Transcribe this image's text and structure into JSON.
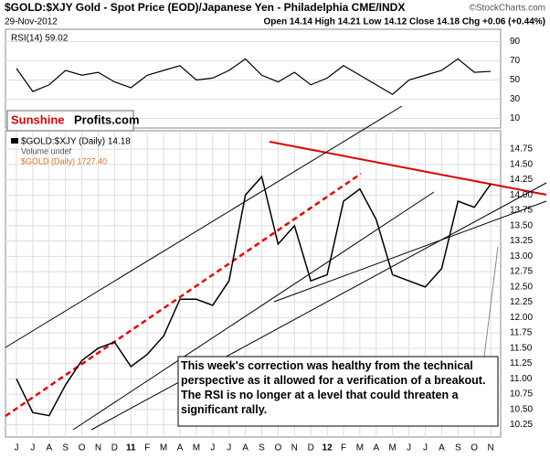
{
  "header": {
    "title": "$GOLD:$XJY Gold - Spot Price (EOD)/Japanese Yen - Philadelphia CME/INDX",
    "credit": "©StockCharts.com",
    "date": "29-Nov-2012",
    "quote": "Open 14.14 High 14.21 Low 14.12 Close 14.18 Chg +0.06 (+0.44%)",
    "logo_1": "Sunshine",
    "logo_2": "Profits.com"
  },
  "annotation": "This week's correction was healthy from the technical perspective as it allowed for a verification of a breakout. The RSI is no longer at a level that could threaten a significant rally.",
  "chart_data": [
    {
      "type": "line",
      "title": "RSI(14) 59.02",
      "color": "#000000",
      "ylim": [
        0,
        100
      ],
      "yticks": [
        10,
        30,
        50,
        70,
        90
      ],
      "values": [
        62,
        38,
        45,
        60,
        55,
        58,
        48,
        42,
        55,
        60,
        65,
        50,
        52,
        60,
        72,
        55,
        48,
        58,
        45,
        52,
        65,
        55,
        45,
        35,
        50,
        55,
        60,
        72,
        58,
        59
      ]
    },
    {
      "type": "line",
      "categories": [
        "J",
        "J",
        "A",
        "S",
        "O",
        "N",
        "D",
        "11",
        "F",
        "M",
        "A",
        "M",
        "J",
        "J",
        "A",
        "S",
        "O",
        "N",
        "D",
        "12",
        "F",
        "M",
        "A",
        "M",
        "J",
        "J",
        "A",
        "S",
        "O",
        "N"
      ],
      "ylim": [
        10.05,
        15.05
      ],
      "yticks": [
        10.25,
        {
          "value": 10.5,
          "label": "10.50"
        },
        10.75,
        {
          "value": 11,
          "label": "11.00"
        },
        11.25,
        {
          "value": 11.5,
          "label": "11.50"
        },
        11.75,
        {
          "value": 12,
          "label": "12.00"
        },
        12.25,
        {
          "value": 12.5,
          "label": "12.50"
        },
        12.75,
        {
          "value": 13,
          "label": "13.00"
        },
        13.25,
        {
          "value": 13.5,
          "label": "13.50"
        },
        13.75,
        {
          "value": 14,
          "label": "14.00"
        },
        14.25,
        {
          "value": 14.5,
          "label": "14.50"
        },
        14.75
      ],
      "grid": true,
      "series": [
        {
          "name": "$GOLD:$XJY (Daily) 14.18",
          "color": "#000000",
          "values": [
            11.0,
            10.45,
            10.4,
            10.9,
            11.3,
            11.5,
            11.6,
            11.2,
            11.4,
            11.7,
            12.3,
            12.3,
            12.2,
            12.6,
            14.0,
            14.3,
            13.2,
            13.5,
            12.6,
            12.7,
            13.9,
            14.1,
            13.6,
            12.7,
            12.6,
            12.5,
            12.8,
            13.9,
            13.8,
            14.18
          ]
        }
      ],
      "legend_notes": [
        "Volume undef",
        "$GOLD (Daily) 1727.40"
      ]
    }
  ]
}
